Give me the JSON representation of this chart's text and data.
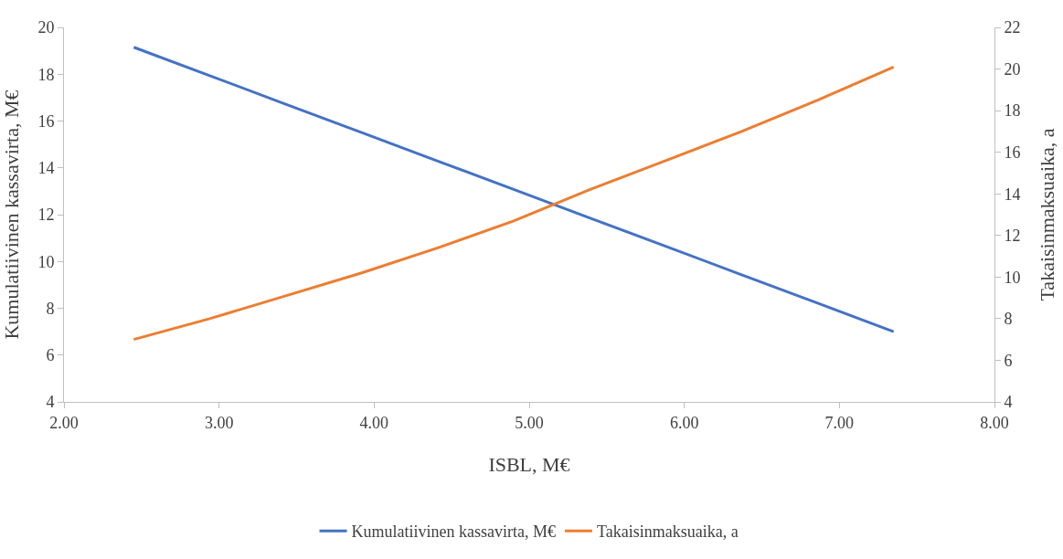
{
  "chart_data": {
    "type": "line",
    "xlabel": "ISBL, M€",
    "ylabel": "Kumulatiivinen kassavirta, M€",
    "y2label": "Takaisinmaksuaika, a",
    "x": [
      2.45,
      2.94,
      3.43,
      3.92,
      4.41,
      4.9,
      5.39,
      5.88,
      6.37,
      6.86,
      7.35
    ],
    "series": [
      {
        "name": "Kumulatiivinen kassavirta, M€",
        "color": "#4472c4",
        "values": [
          19.15,
          17.94,
          16.72,
          15.51,
          14.29,
          13.08,
          11.86,
          10.65,
          9.43,
          8.22,
          7.0
        ]
      },
      {
        "name": "Takaisinmaksuaika, a",
        "color": "#ed7d31",
        "axis": "y2",
        "values": [
          7.0,
          8.0,
          9.1,
          10.2,
          11.4,
          12.7,
          14.2,
          15.6,
          17.0,
          18.5,
          20.1
        ]
      }
    ],
    "xlim": [
      2,
      8
    ],
    "xticks": [
      {
        "value": 2,
        "label": "2.00"
      },
      {
        "value": 3,
        "label": "3.00"
      },
      {
        "value": 4,
        "label": "4.00"
      },
      {
        "value": 5,
        "label": "5.00"
      },
      {
        "value": 6,
        "label": "6.00"
      },
      {
        "value": 7,
        "label": "7.00"
      },
      {
        "value": 8,
        "label": "8.00"
      }
    ],
    "ylim": [
      4,
      20
    ],
    "yticks": [
      4,
      6,
      8,
      10,
      12,
      14,
      16,
      18,
      20
    ],
    "y2lim": [
      4,
      22
    ],
    "y2ticks": [
      4,
      6,
      8,
      10,
      12,
      14,
      16,
      18,
      20,
      22
    ],
    "grid": false,
    "legend": "bottom",
    "marker": "none",
    "line_style": "solid"
  }
}
